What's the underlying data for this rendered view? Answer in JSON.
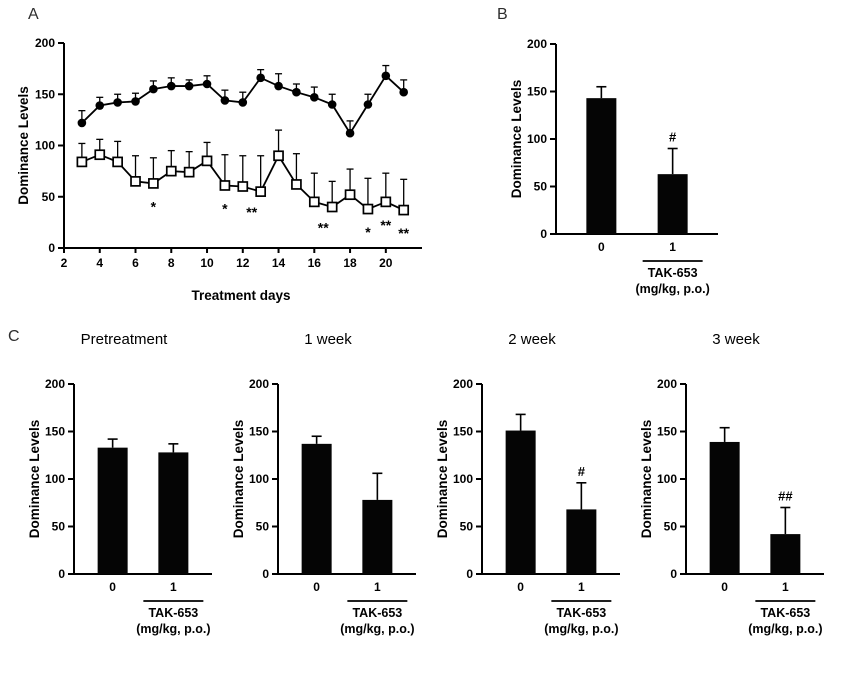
{
  "panels": {
    "a_label": "A",
    "b_label": "B",
    "c_label": "C"
  },
  "chart_data": [
    {
      "id": "panel-a",
      "type": "line",
      "title": "",
      "xlabel": "Treatment days",
      "ylabel": "Dominance Levels",
      "ylim": [
        0,
        200
      ],
      "yticks": [
        0,
        50,
        100,
        150,
        200
      ],
      "xlim": [
        2,
        21.8
      ],
      "xticks": [
        2,
        4,
        6,
        8,
        10,
        12,
        14,
        16,
        18,
        20
      ],
      "x": [
        3,
        4,
        5,
        6,
        7,
        8,
        9,
        10,
        11,
        12,
        13,
        14,
        15,
        16,
        17,
        18,
        19,
        20,
        21
      ],
      "series": [
        {
          "name": "filled-circle-series",
          "marker": "filled-circle",
          "values": [
            122,
            139,
            142,
            143,
            155,
            158,
            158,
            160,
            144,
            142,
            166,
            158,
            152,
            147,
            140,
            112,
            140,
            168,
            152
          ],
          "errors": [
            12,
            8,
            8,
            8,
            8,
            8,
            6,
            8,
            10,
            10,
            8,
            12,
            8,
            10,
            10,
            12,
            10,
            10,
            12
          ]
        },
        {
          "name": "open-square-series",
          "marker": "open-square",
          "values": [
            84,
            91,
            84,
            65,
            63,
            75,
            74,
            85,
            61,
            60,
            55,
            90,
            62,
            45,
            40,
            52,
            38,
            45,
            37
          ],
          "errors": [
            18,
            15,
            20,
            25,
            25,
            20,
            20,
            18,
            30,
            30,
            35,
            25,
            30,
            28,
            25,
            25,
            30,
            28,
            30
          ]
        }
      ],
      "annotations": [
        {
          "x": 7,
          "label": "*"
        },
        {
          "x": 11,
          "label": "*"
        },
        {
          "x": 12.5,
          "label": "**"
        },
        {
          "x": 16.5,
          "label": "**"
        },
        {
          "x": 19,
          "label": "*"
        },
        {
          "x": 20,
          "label": "**"
        },
        {
          "x": 21,
          "label": "**"
        }
      ],
      "grid": false,
      "legend": "none"
    },
    {
      "id": "panel-b",
      "type": "bar",
      "title": "",
      "ylabel": "Dominance Levels",
      "ylim": [
        0,
        200
      ],
      "yticks": [
        0,
        50,
        100,
        150,
        200
      ],
      "categories": [
        "0",
        "1"
      ],
      "values": [
        143,
        63
      ],
      "errors": [
        12,
        27
      ],
      "annotations": [
        "",
        "#"
      ],
      "x_group_label": "TAK-653",
      "x_group_sublabel": "(mg/kg, p.o.)"
    },
    {
      "id": "panel-c-pretreatment",
      "type": "bar",
      "title": "Pretreatment",
      "ylabel": "Dominance Levels",
      "ylim": [
        0,
        200
      ],
      "yticks": [
        0,
        50,
        100,
        150,
        200
      ],
      "categories": [
        "0",
        "1"
      ],
      "values": [
        133,
        128
      ],
      "errors": [
        9,
        9
      ],
      "annotations": [
        "",
        ""
      ],
      "x_group_label": "TAK-653",
      "x_group_sublabel": "(mg/kg, p.o.)"
    },
    {
      "id": "panel-c-1week",
      "type": "bar",
      "title": "1 week",
      "ylabel": "Dominance Levels",
      "ylim": [
        0,
        200
      ],
      "yticks": [
        0,
        50,
        100,
        150,
        200
      ],
      "categories": [
        "0",
        "1"
      ],
      "values": [
        137,
        78
      ],
      "errors": [
        8,
        28
      ],
      "annotations": [
        "",
        ""
      ],
      "x_group_label": "TAK-653",
      "x_group_sublabel": "(mg/kg, p.o.)"
    },
    {
      "id": "panel-c-2week",
      "type": "bar",
      "title": "2 week",
      "ylabel": "Dominance Levels",
      "ylim": [
        0,
        200
      ],
      "yticks": [
        0,
        50,
        100,
        150,
        200
      ],
      "categories": [
        "0",
        "1"
      ],
      "values": [
        151,
        68
      ],
      "errors": [
        17,
        28
      ],
      "annotations": [
        "",
        "#"
      ],
      "x_group_label": "TAK-653",
      "x_group_sublabel": "(mg/kg, p.o.)"
    },
    {
      "id": "panel-c-3week",
      "type": "bar",
      "title": "3 week",
      "ylabel": "Dominance Levels",
      "ylim": [
        0,
        200
      ],
      "yticks": [
        0,
        50,
        100,
        150,
        200
      ],
      "categories": [
        "0",
        "1"
      ],
      "values": [
        139,
        42
      ],
      "errors": [
        15,
        28
      ],
      "annotations": [
        "",
        "##"
      ],
      "x_group_label": "TAK-653",
      "x_group_sublabel": "(mg/kg, p.o.)"
    }
  ]
}
